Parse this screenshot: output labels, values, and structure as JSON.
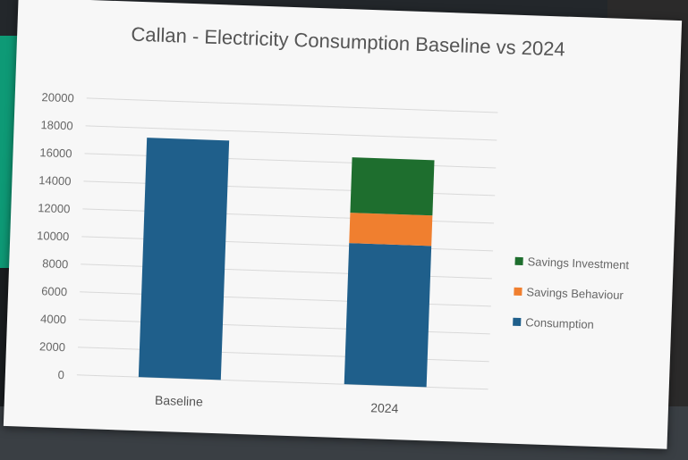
{
  "chart_data": {
    "type": "bar",
    "stacked": true,
    "title": "Callan - Electricity Consumption Baseline vs 2024",
    "categories": [
      "Baseline",
      "2024"
    ],
    "series": [
      {
        "name": "Consumption",
        "values": [
          17300,
          10200
        ],
        "color": "#1f5f8b"
      },
      {
        "name": "Savings Behaviour",
        "values": [
          0,
          2200
        ],
        "color": "#f07f2f"
      },
      {
        "name": "Savings Investment",
        "values": [
          0,
          4000
        ],
        "color": "#1e6e2e"
      }
    ],
    "yticks": [
      "0",
      "2000",
      "4000",
      "6000",
      "8000",
      "10000",
      "12000",
      "14000",
      "16000",
      "18000",
      "20000"
    ],
    "ylim": [
      0,
      20000
    ],
    "grid": true,
    "legend_position": "right"
  }
}
